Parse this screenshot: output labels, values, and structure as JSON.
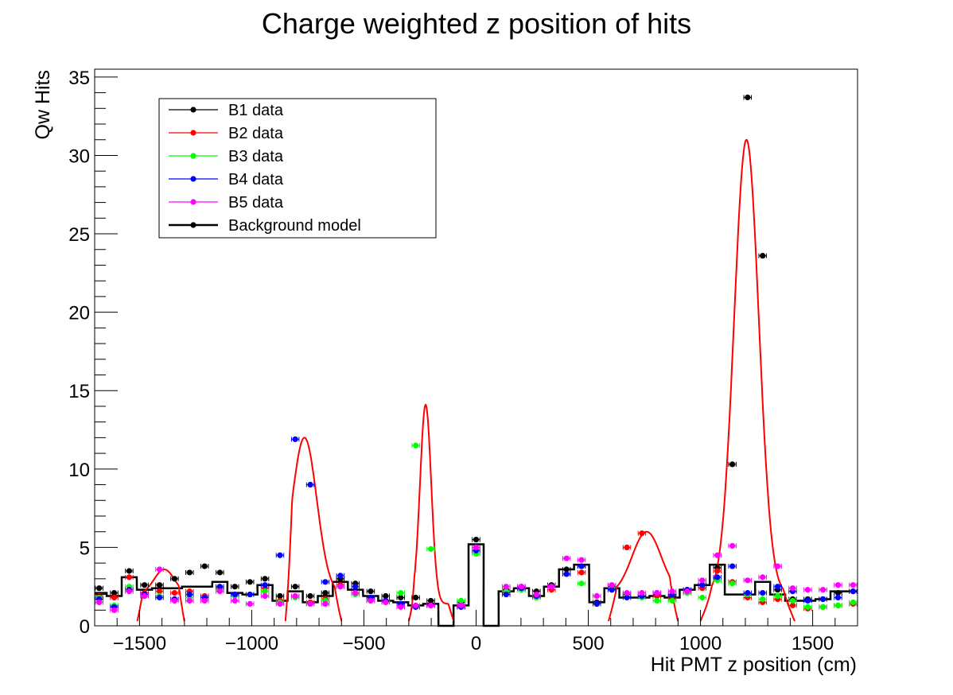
{
  "chart_data": {
    "type": "scatter",
    "title": "Charge weighted z position of hits",
    "xlabel": "Hit PMT z position (cm)",
    "ylabel": "Qw Hits",
    "xlim": [
      -1700,
      1700
    ],
    "ylim": [
      0,
      35.5
    ],
    "x_ticks": [
      -1500,
      -1000,
      -500,
      0,
      500,
      1000,
      1500
    ],
    "x_tick_labels": [
      "−1500",
      "−1000",
      "−500",
      "0",
      "500",
      "1000",
      "1500"
    ],
    "y_ticks": [
      0,
      5,
      10,
      15,
      20,
      25,
      30,
      35
    ],
    "y_tick_labels": [
      "0",
      "5",
      "10",
      "15",
      "20",
      "25",
      "30",
      "35"
    ],
    "grid": false,
    "legend_position": "top-left",
    "legend": [
      {
        "label": "B1 data",
        "color": "#000000"
      },
      {
        "label": "B2 data",
        "color": "#ff0000"
      },
      {
        "label": "B3 data",
        "color": "#00ff00"
      },
      {
        "label": "B4 data",
        "color": "#0000ff"
      },
      {
        "label": "B5 data",
        "color": "#ff00ff"
      },
      {
        "label": "Background model",
        "color": "#000000"
      }
    ],
    "bin_width": 67.2,
    "x": [
      -1680,
      -1613,
      -1546,
      -1478,
      -1411,
      -1344,
      -1277,
      -1210,
      -1142,
      -1075,
      -1008,
      -941,
      -874,
      -806,
      -739,
      -672,
      -605,
      -538,
      -470,
      -403,
      -336,
      -269,
      -202,
      -134,
      -67,
      0,
      67,
      134,
      202,
      269,
      336,
      403,
      470,
      538,
      605,
      672,
      739,
      806,
      874,
      941,
      1008,
      1075,
      1142,
      1210,
      1277,
      1344,
      1411,
      1478,
      1546,
      1613,
      1680
    ],
    "background_model": [
      2.1,
      1.9,
      3.1,
      2.3,
      2.4,
      2.4,
      2.5,
      2.5,
      2.8,
      2.1,
      2.0,
      2.6,
      1.6,
      2.2,
      1.5,
      1.9,
      2.8,
      2.3,
      1.9,
      1.6,
      1.5,
      1.3,
      1.4,
      0,
      1.3,
      5.2,
      0,
      2.2,
      2.4,
      1.9,
      2.5,
      3.6,
      3.9,
      1.5,
      2.4,
      1.8,
      1.8,
      1.9,
      1.8,
      2.3,
      2.6,
      3.9,
      2.0,
      2.0,
      2.8,
      2.0,
      1.6,
      1.6,
      1.7,
      2.2,
      2.2
    ],
    "series": [
      {
        "name": "B1 data",
        "color": "#000000",
        "values": [
          2.4,
          2.1,
          3.5,
          2.6,
          2.6,
          3.0,
          3.4,
          3.8,
          3.4,
          2.5,
          2.8,
          3.0,
          1.9,
          2.5,
          1.9,
          2.1,
          3.0,
          2.7,
          2.2,
          1.9,
          1.8,
          1.8,
          1.6,
          null,
          1.5,
          5.5,
          null,
          2.3,
          2.5,
          2.2,
          2.6,
          3.6,
          3.8,
          1.5,
          2.5,
          2.0,
          1.9,
          2.0,
          1.9,
          2.3,
          2.6,
          3.7,
          10.3,
          33.7,
          23.6,
          2.3,
          1.7,
          1.7,
          1.7,
          2.1,
          2.2
        ]
      },
      {
        "name": "B2 data",
        "color": "#ff0000",
        "values": [
          1.9,
          1.8,
          3.1,
          2.1,
          2.2,
          2.1,
          2.2,
          1.9,
          2.4,
          2.0,
          2.0,
          2.4,
          1.6,
          1.9,
          1.5,
          1.7,
          2.6,
          2.1,
          1.7,
          1.6,
          1.3,
          1.2,
          1.3,
          null,
          1.2,
          5.0,
          null,
          2.1,
          2.3,
          1.8,
          2.3,
          3.3,
          3.4,
          1.4,
          2.3,
          5.0,
          5.9,
          1.9,
          1.7,
          2.1,
          2.4,
          3.5,
          2.8,
          1.8,
          1.5,
          1.7,
          1.3,
          1.1,
          1.2,
          1.3,
          1.4
        ]
      },
      {
        "name": "B3 data",
        "color": "#00ff00",
        "values": [
          1.8,
          1.3,
          2.5,
          1.9,
          1.9,
          1.7,
          1.8,
          1.7,
          2.3,
          1.9,
          2.0,
          2.2,
          1.5,
          1.8,
          1.4,
          1.6,
          2.5,
          2.0,
          1.6,
          1.5,
          2.1,
          11.5,
          4.9,
          null,
          1.6,
          4.6,
          null,
          2.2,
          2.3,
          1.8,
          2.5,
          3.3,
          2.7,
          1.4,
          2.4,
          1.9,
          1.8,
          1.6,
          1.6,
          2.1,
          1.8,
          2.9,
          2.7,
          2.0,
          1.7,
          1.9,
          1.6,
          1.2,
          1.2,
          1.3,
          1.5
        ]
      },
      {
        "name": "B4 data",
        "color": "#0000ff",
        "values": [
          1.7,
          1.2,
          2.3,
          2.0,
          1.8,
          1.7,
          2.0,
          1.8,
          2.5,
          2.0,
          2.0,
          2.6,
          4.5,
          11.9,
          9.0,
          2.8,
          3.2,
          2.5,
          1.8,
          1.6,
          1.4,
          1.2,
          1.3,
          null,
          1.2,
          4.8,
          null,
          2.0,
          2.4,
          1.9,
          2.5,
          3.3,
          3.8,
          1.4,
          2.3,
          1.8,
          1.9,
          2.1,
          2.0,
          2.3,
          2.6,
          3.1,
          3.8,
          2.1,
          2.1,
          2.5,
          2.2,
          1.6,
          1.7,
          1.8,
          2.2
        ]
      },
      {
        "name": "B5 data",
        "color": "#ff00ff",
        "values": [
          1.5,
          1.0,
          2.2,
          1.9,
          3.6,
          1.6,
          1.6,
          1.6,
          2.2,
          1.6,
          1.4,
          1.9,
          1.4,
          1.9,
          1.4,
          1.4,
          2.5,
          2.1,
          1.6,
          1.5,
          1.2,
          1.3,
          1.3,
          null,
          1.3,
          5.0,
          null,
          2.5,
          2.5,
          2.0,
          2.5,
          4.3,
          4.2,
          1.9,
          2.6,
          2.1,
          2.1,
          2.1,
          2.2,
          2.2,
          2.9,
          4.5,
          5.1,
          2.9,
          3.1,
          3.8,
          2.4,
          2.3,
          2.3,
          2.6,
          2.6
        ]
      }
    ],
    "fit_curves": [
      {
        "color": "#ff0000",
        "mean": -1390,
        "sigma": 45,
        "amplitude": 1.6,
        "baseline": 2.0,
        "range": [
          -1510,
          -1300
        ]
      },
      {
        "color": "#ff0000",
        "mean": -765,
        "sigma": 55,
        "amplitude": 10.0,
        "baseline": 2.0,
        "range": [
          -850,
          -600
        ]
      },
      {
        "color": "#ff0000",
        "mean": -225,
        "sigma": 25,
        "amplitude": 12.7,
        "baseline": 1.4,
        "range": [
          -300,
          -100
        ]
      },
      {
        "color": "#ff0000",
        "mean": 760,
        "sigma": 65,
        "amplitude": 4.0,
        "baseline": 2.0,
        "range": [
          590,
          900
        ]
      },
      {
        "color": "#ff0000",
        "mean": 1205,
        "sigma": 55,
        "amplitude": 29.0,
        "baseline": 2.0,
        "range": [
          1000,
          1420
        ]
      }
    ]
  }
}
